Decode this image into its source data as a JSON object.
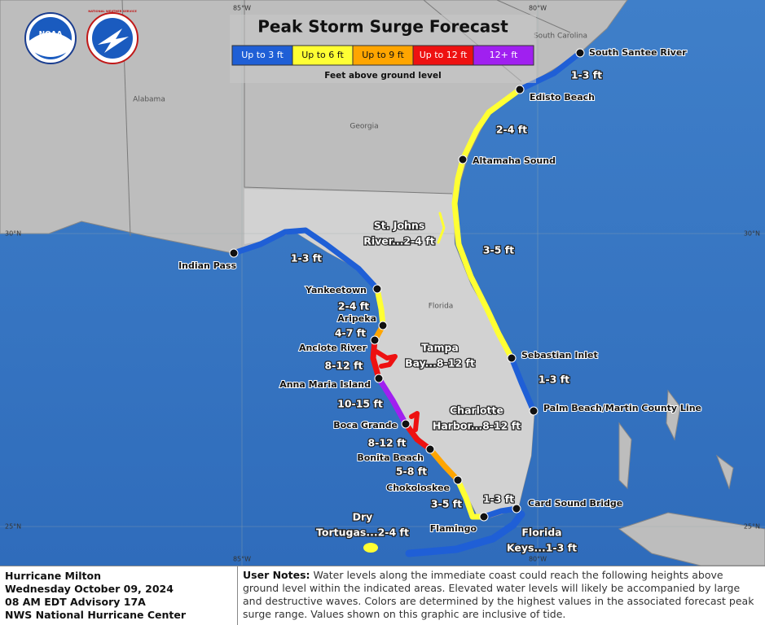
{
  "header": {
    "title": "Peak Storm Surge Forecast",
    "logos": [
      "NOAA",
      "NATIONAL WEATHER SERVICE"
    ]
  },
  "legend": {
    "items": [
      {
        "label": "Up to 3 ft",
        "color": "#1f5fd6"
      },
      {
        "label": "Up to 6 ft",
        "color": "#ffff33"
      },
      {
        "label": "Up to 9 ft",
        "color": "#ffa500"
      },
      {
        "label": "Up to 12 ft",
        "color": "#ee1111"
      },
      {
        "label": "12+ ft",
        "color": "#a020f0"
      }
    ],
    "caption": "Feet above ground level"
  },
  "grid_labels": [
    "85°W",
    "80°W",
    "30°N",
    "25°N"
  ],
  "states": [
    "Alabama",
    "Georgia",
    "South Carolina",
    "Florida"
  ],
  "locations": [
    "South Santee River",
    "Edisto Beach",
    "Altamaha Sound",
    "Sebastian Inlet",
    "Palm Beach/Martin County Line",
    "Card Sound Bridge",
    "Flamingo",
    "Chokoloskee",
    "Bonita Beach",
    "Boca Grande",
    "Anna Maria Island",
    "Anclote River",
    "Aripeka",
    "Yankeetown",
    "Indian Pass"
  ],
  "surge_labels": [
    [
      "1-3 ft"
    ],
    [
      "2-4 ft"
    ],
    [
      "3-5 ft"
    ],
    [
      "1-3 ft"
    ],
    [
      "1-3 ft"
    ],
    [
      "3-5 ft"
    ],
    [
      "5-8 ft"
    ],
    [
      "8-12 ft"
    ],
    [
      "10-15 ft"
    ],
    [
      "8-12 ft"
    ],
    [
      "4-7 ft"
    ],
    [
      "2-4 ft"
    ],
    [
      "1-3 ft"
    ],
    [
      "Tampa",
      "Bay...8-12 ft"
    ],
    [
      "Charlotte",
      "Harbor...8-12 ft"
    ],
    [
      "St. Johns",
      "River...2-4 ft"
    ],
    [
      "Dry",
      "Tortugas...2-4 ft"
    ],
    [
      "Florida",
      "Keys...1-3 ft"
    ]
  ],
  "footer": {
    "storm": "Hurricane Milton",
    "date": "Wednesday October 09, 2024",
    "advisory": "08 AM EDT Advisory 17A",
    "agency": "NWS National Hurricane Center",
    "notes_heading": "User Notes:",
    "notes": "Water levels along the immediate coast could reach the following heights above ground level within the indicated areas. Elevated water levels will likely be accompanied by large and destructive waves. Colors are determined by the highest values in the associated forecast peak surge range. Values shown on this graphic are inclusive of tide."
  }
}
